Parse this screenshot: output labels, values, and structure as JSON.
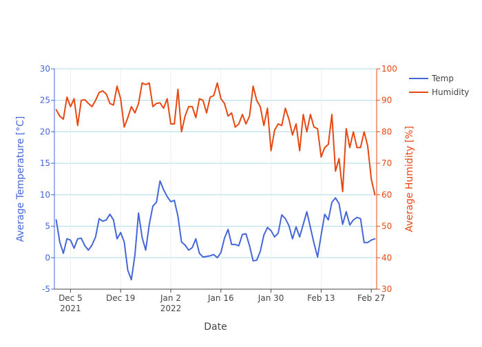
{
  "chart_data": {
    "type": "line",
    "xlabel": "Date",
    "y1label": "Average Temperature [°C]",
    "y2label": "Average Humidity [%]",
    "y1lim": [
      -5,
      30
    ],
    "y2lim": [
      30,
      100
    ],
    "y1ticks": [
      -5,
      0,
      5,
      10,
      15,
      20,
      25,
      30
    ],
    "y2ticks": [
      30,
      40,
      50,
      60,
      70,
      80,
      90,
      100
    ],
    "xticks": [
      {
        "date": "2021-12-05",
        "label": "Dec 5",
        "sublabel": "2021"
      },
      {
        "date": "2021-12-19",
        "label": "Dec 19",
        "sublabel": ""
      },
      {
        "date": "2022-01-02",
        "label": "Jan 2",
        "sublabel": "2022"
      },
      {
        "date": "2022-01-16",
        "label": "Jan 16",
        "sublabel": ""
      },
      {
        "date": "2022-01-30",
        "label": "Jan 30",
        "sublabel": ""
      },
      {
        "date": "2022-02-13",
        "label": "Feb 13",
        "sublabel": ""
      },
      {
        "date": "2022-02-27",
        "label": "Feb 27",
        "sublabel": ""
      }
    ],
    "grid": true,
    "legend_position": "top-right",
    "series": [
      {
        "name": "Temp",
        "axis": "y1",
        "color": "#4466d8",
        "points": [
          [
            "2021-12-01",
            6.0
          ],
          [
            "2021-12-02",
            2.5
          ],
          [
            "2021-12-03",
            0.7
          ],
          [
            "2021-12-04",
            3.0
          ],
          [
            "2021-12-05",
            2.8
          ],
          [
            "2021-12-06",
            1.5
          ],
          [
            "2021-12-07",
            3.0
          ],
          [
            "2021-12-08",
            3.1
          ],
          [
            "2021-12-09",
            1.9
          ],
          [
            "2021-12-10",
            1.2
          ],
          [
            "2021-12-11",
            2.0
          ],
          [
            "2021-12-12",
            3.3
          ],
          [
            "2021-12-13",
            6.2
          ],
          [
            "2021-12-14",
            5.8
          ],
          [
            "2021-12-15",
            6.0
          ],
          [
            "2021-12-16",
            6.9
          ],
          [
            "2021-12-17",
            6.0
          ],
          [
            "2021-12-18",
            3.0
          ],
          [
            "2021-12-19",
            4.0
          ],
          [
            "2021-12-20",
            2.5
          ],
          [
            "2021-12-21",
            -2.0
          ],
          [
            "2021-12-22",
            -3.5
          ],
          [
            "2021-12-23",
            0.5
          ],
          [
            "2021-12-24",
            7.1
          ],
          [
            "2021-12-25",
            3.2
          ],
          [
            "2021-12-26",
            1.2
          ],
          [
            "2021-12-27",
            5.3
          ],
          [
            "2021-12-28",
            8.2
          ],
          [
            "2021-12-29",
            8.8
          ],
          [
            "2021-12-30",
            12.2
          ],
          [
            "2021-12-31",
            10.8
          ],
          [
            "2022-01-01",
            9.7
          ],
          [
            "2022-01-02",
            8.9
          ],
          [
            "2022-01-03",
            9.1
          ],
          [
            "2022-01-04",
            6.6
          ],
          [
            "2022-01-05",
            2.5
          ],
          [
            "2022-01-06",
            2.0
          ],
          [
            "2022-01-07",
            1.2
          ],
          [
            "2022-01-08",
            1.6
          ],
          [
            "2022-01-09",
            3.0
          ],
          [
            "2022-01-10",
            0.7
          ],
          [
            "2022-01-11",
            0.1
          ],
          [
            "2022-01-12",
            0.2
          ],
          [
            "2022-01-13",
            0.3
          ],
          [
            "2022-01-14",
            0.5
          ],
          [
            "2022-01-15",
            0.0
          ],
          [
            "2022-01-16",
            0.8
          ],
          [
            "2022-01-17",
            3.1
          ],
          [
            "2022-01-18",
            4.5
          ],
          [
            "2022-01-19",
            2.1
          ],
          [
            "2022-01-20",
            2.1
          ],
          [
            "2022-01-21",
            1.9
          ],
          [
            "2022-01-22",
            3.7
          ],
          [
            "2022-01-23",
            3.8
          ],
          [
            "2022-01-24",
            1.9
          ],
          [
            "2022-01-25",
            -0.5
          ],
          [
            "2022-01-26",
            -0.4
          ],
          [
            "2022-01-27",
            1.0
          ],
          [
            "2022-01-28",
            3.6
          ],
          [
            "2022-01-29",
            4.8
          ],
          [
            "2022-01-30",
            4.3
          ],
          [
            "2022-01-31",
            3.3
          ],
          [
            "2022-02-01",
            3.9
          ],
          [
            "2022-02-02",
            6.8
          ],
          [
            "2022-02-03",
            6.2
          ],
          [
            "2022-02-04",
            5.1
          ],
          [
            "2022-02-05",
            3.0
          ],
          [
            "2022-02-06",
            4.9
          ],
          [
            "2022-02-07",
            3.3
          ],
          [
            "2022-02-08",
            5.3
          ],
          [
            "2022-02-09",
            7.3
          ],
          [
            "2022-02-10",
            4.8
          ],
          [
            "2022-02-11",
            2.3
          ],
          [
            "2022-02-12",
            0.1
          ],
          [
            "2022-02-13",
            3.6
          ],
          [
            "2022-02-14",
            6.9
          ],
          [
            "2022-02-15",
            6.0
          ],
          [
            "2022-02-16",
            8.8
          ],
          [
            "2022-02-17",
            9.5
          ],
          [
            "2022-02-18",
            8.6
          ],
          [
            "2022-02-19",
            5.3
          ],
          [
            "2022-02-20",
            7.3
          ],
          [
            "2022-02-21",
            5.2
          ],
          [
            "2022-02-22",
            6.0
          ],
          [
            "2022-02-23",
            6.4
          ],
          [
            "2022-02-24",
            6.2
          ],
          [
            "2022-02-25",
            2.4
          ],
          [
            "2022-02-26",
            2.4
          ],
          [
            "2022-02-27",
            2.8
          ],
          [
            "2022-02-28",
            3.0
          ]
        ]
      },
      {
        "name": "Humidity",
        "axis": "y2",
        "color": "#e8470f",
        "points": [
          [
            "2021-12-01",
            87.0
          ],
          [
            "2021-12-02",
            85.0
          ],
          [
            "2021-12-03",
            84.0
          ],
          [
            "2021-12-04",
            91.0
          ],
          [
            "2021-12-05",
            88.0
          ],
          [
            "2021-12-06",
            90.5
          ],
          [
            "2021-12-07",
            82.0
          ],
          [
            "2021-12-08",
            90.0
          ],
          [
            "2021-12-09",
            90.2
          ],
          [
            "2021-12-10",
            89.0
          ],
          [
            "2021-12-11",
            88.0
          ],
          [
            "2021-12-12",
            90.0
          ],
          [
            "2021-12-13",
            92.5
          ],
          [
            "2021-12-14",
            93.0
          ],
          [
            "2021-12-15",
            92.0
          ],
          [
            "2021-12-16",
            89.0
          ],
          [
            "2021-12-17",
            88.5
          ],
          [
            "2021-12-18",
            94.5
          ],
          [
            "2021-12-19",
            90.5
          ],
          [
            "2021-12-20",
            81.5
          ],
          [
            "2021-12-21",
            84.5
          ],
          [
            "2021-12-22",
            88.0
          ],
          [
            "2021-12-23",
            86.0
          ],
          [
            "2021-12-24",
            89.0
          ],
          [
            "2021-12-25",
            95.5
          ],
          [
            "2021-12-26",
            95.0
          ],
          [
            "2021-12-27",
            95.5
          ],
          [
            "2021-12-28",
            88.0
          ],
          [
            "2021-12-29",
            89.0
          ],
          [
            "2021-12-30",
            89.2
          ],
          [
            "2021-12-31",
            87.5
          ],
          [
            "2022-01-01",
            90.5
          ],
          [
            "2022-01-02",
            82.5
          ],
          [
            "2022-01-03",
            82.5
          ],
          [
            "2022-01-04",
            93.5
          ],
          [
            "2022-01-05",
            80.0
          ],
          [
            "2022-01-06",
            85.0
          ],
          [
            "2022-01-07",
            88.0
          ],
          [
            "2022-01-08",
            88.0
          ],
          [
            "2022-01-09",
            84.5
          ],
          [
            "2022-01-10",
            90.5
          ],
          [
            "2022-01-11",
            90.0
          ],
          [
            "2022-01-12",
            86.0
          ],
          [
            "2022-01-13",
            91.0
          ],
          [
            "2022-01-14",
            91.5
          ],
          [
            "2022-01-15",
            95.5
          ],
          [
            "2022-01-16",
            90.5
          ],
          [
            "2022-01-17",
            89.0
          ],
          [
            "2022-01-18",
            85.0
          ],
          [
            "2022-01-19",
            86.0
          ],
          [
            "2022-01-20",
            81.5
          ],
          [
            "2022-01-21",
            82.5
          ],
          [
            "2022-01-22",
            85.5
          ],
          [
            "2022-01-23",
            82.5
          ],
          [
            "2022-01-24",
            85.0
          ],
          [
            "2022-01-25",
            94.5
          ],
          [
            "2022-01-26",
            90.0
          ],
          [
            "2022-01-27",
            88.0
          ],
          [
            "2022-01-28",
            82.0
          ],
          [
            "2022-01-29",
            87.5
          ],
          [
            "2022-01-30",
            74.0
          ],
          [
            "2022-01-31",
            80.5
          ],
          [
            "2022-02-01",
            82.5
          ],
          [
            "2022-02-02",
            82.0
          ],
          [
            "2022-02-03",
            87.5
          ],
          [
            "2022-02-04",
            84.0
          ],
          [
            "2022-02-05",
            79.0
          ],
          [
            "2022-02-06",
            82.5
          ],
          [
            "2022-02-07",
            74.0
          ],
          [
            "2022-02-08",
            85.5
          ],
          [
            "2022-02-09",
            80.0
          ],
          [
            "2022-02-10",
            85.5
          ],
          [
            "2022-02-11",
            81.5
          ],
          [
            "2022-02-12",
            81.0
          ],
          [
            "2022-02-13",
            72.0
          ],
          [
            "2022-02-14",
            75.0
          ],
          [
            "2022-02-15",
            76.0
          ],
          [
            "2022-02-16",
            85.5
          ],
          [
            "2022-02-17",
            67.5
          ],
          [
            "2022-02-18",
            71.5
          ],
          [
            "2022-02-19",
            61.0
          ],
          [
            "2022-02-20",
            81.0
          ],
          [
            "2022-02-21",
            75.0
          ],
          [
            "2022-02-22",
            80.0
          ],
          [
            "2022-02-23",
            75.0
          ],
          [
            "2022-02-24",
            75.0
          ],
          [
            "2022-02-25",
            80.0
          ],
          [
            "2022-02-26",
            75.5
          ],
          [
            "2022-02-27",
            65.0
          ],
          [
            "2022-02-28",
            60.0
          ]
        ]
      }
    ]
  }
}
